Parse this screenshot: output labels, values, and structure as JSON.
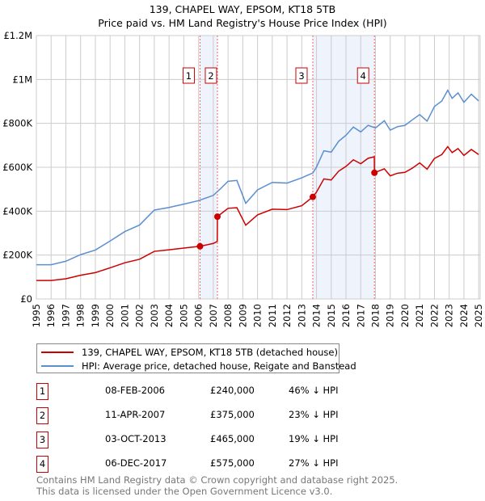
{
  "chart_data": {
    "type": "line",
    "title": "139, CHAPEL WAY, EPSOM, KT18 5TB",
    "subtitle": "Price paid vs. HM Land Registry's House Price Index (HPI)",
    "xlim": [
      1995,
      2025.1
    ],
    "ylim": [
      0,
      1200000
    ],
    "y_ticks": [
      {
        "v": 0,
        "label": "£0"
      },
      {
        "v": 200000,
        "label": "£200K"
      },
      {
        "v": 400000,
        "label": "£400K"
      },
      {
        "v": 600000,
        "label": "£600K"
      },
      {
        "v": 800000,
        "label": "£800K"
      },
      {
        "v": 1000000,
        "label": "£1M"
      },
      {
        "v": 1200000,
        "label": "£1.2M"
      }
    ],
    "x_ticks": [
      "1995",
      "1996",
      "1997",
      "1998",
      "1999",
      "2000",
      "2001",
      "2002",
      "2003",
      "2004",
      "2005",
      "2006",
      "2007",
      "2008",
      "2009",
      "2010",
      "2011",
      "2012",
      "2013",
      "2014",
      "2015",
      "2016",
      "2017",
      "2018",
      "2019",
      "2020",
      "2021",
      "2022",
      "2023",
      "2024",
      "2025"
    ],
    "grid": true,
    "shaded_ranges": [
      [
        2006.1,
        2007.27
      ],
      [
        2013.75,
        2017.93
      ]
    ],
    "series": [
      {
        "name": "139, CHAPEL WAY, EPSOM, KT18 5TB (detached house)",
        "color": "#cc0000",
        "x": [
          1995,
          1996,
          1997,
          1998,
          1999,
          2000,
          2001,
          2002,
          2003,
          2004,
          2005,
          2006.1,
          2007,
          2007.27,
          2007.28,
          2007.5,
          2008,
          2008.6,
          2009.2,
          2010,
          2011,
          2012,
          2013,
          2013.75,
          2014,
          2014.5,
          2015,
          2015.5,
          2016,
          2016.5,
          2017,
          2017.5,
          2017.92,
          2017.93,
          2018.6,
          2019,
          2019.5,
          2020,
          2020.5,
          2021,
          2021.5,
          2022,
          2022.5,
          2022.9,
          2023.2,
          2023.6,
          2024,
          2024.5,
          2025
        ],
        "y": [
          84000,
          84000,
          92000,
          108000,
          120000,
          142000,
          165000,
          181000,
          217000,
          224000,
          232000,
          240000,
          253000,
          262000,
          375000,
          387000,
          413000,
          416000,
          336000,
          383000,
          409000,
          407000,
          425000,
          465000,
          487000,
          547000,
          542000,
          582000,
          604000,
          634000,
          616000,
          641000,
          648000,
          575000,
          593000,
          561000,
          573000,
          577000,
          596000,
          620000,
          591000,
          640000,
          658000,
          694000,
          667000,
          685000,
          654000,
          681000,
          658000
        ]
      },
      {
        "name": "HPI: Average price, detached house, Reigate and Banstead",
        "color": "#5b8fd0",
        "x": [
          1995,
          1996,
          1997,
          1998,
          1999,
          2000,
          2001,
          2002,
          2003,
          2004,
          2005,
          2006,
          2007,
          2007.5,
          2008,
          2008.6,
          2009.2,
          2010,
          2011,
          2012,
          2013,
          2013.75,
          2014,
          2014.5,
          2015,
          2015.5,
          2016,
          2016.5,
          2017,
          2017.5,
          2018,
          2018.6,
          2019,
          2019.5,
          2020,
          2020.5,
          2021,
          2021.5,
          2022,
          2022.5,
          2022.9,
          2023.2,
          2023.6,
          2024,
          2024.5,
          2025
        ],
        "y": [
          156000,
          156000,
          172000,
          202000,
          223000,
          264000,
          307000,
          337000,
          405000,
          417000,
          432000,
          448000,
          472000,
          503000,
          536000,
          540000,
          436000,
          497000,
          531000,
          528000,
          552000,
          574000,
          601000,
          675000,
          669000,
          718000,
          746000,
          783000,
          761000,
          791000,
          779000,
          812000,
          769000,
          785000,
          791000,
          816000,
          840000,
          810000,
          877000,
          902000,
          951000,
          914000,
          939000,
          896000,
          933000,
          902000
        ]
      }
    ],
    "markers": [
      {
        "label": "1",
        "x": 2006.1,
        "y": 240000
      },
      {
        "label": "2",
        "x": 2007.28,
        "y": 375000
      },
      {
        "label": "3",
        "x": 2013.75,
        "y": 465000
      },
      {
        "label": "4",
        "x": 2017.93,
        "y": 575000
      }
    ]
  },
  "legend": {
    "red": "139, CHAPEL WAY, EPSOM, KT18 5TB (detached house)",
    "blue": "HPI: Average price, detached house, Reigate and Banstead"
  },
  "transactions": [
    {
      "num": "1",
      "date": "08-FEB-2006",
      "price": "£240,000",
      "hpi": "46% ↓ HPI"
    },
    {
      "num": "2",
      "date": "11-APR-2007",
      "price": "£375,000",
      "hpi": "23% ↓ HPI"
    },
    {
      "num": "3",
      "date": "03-OCT-2013",
      "price": "£465,000",
      "hpi": "19% ↓ HPI"
    },
    {
      "num": "4",
      "date": "06-DEC-2017",
      "price": "£575,000",
      "hpi": "27% ↓ HPI"
    }
  ],
  "footer": {
    "line1": "Contains HM Land Registry data © Crown copyright and database right 2025.",
    "line2": "This data is licensed under the Open Government Licence v3.0."
  }
}
